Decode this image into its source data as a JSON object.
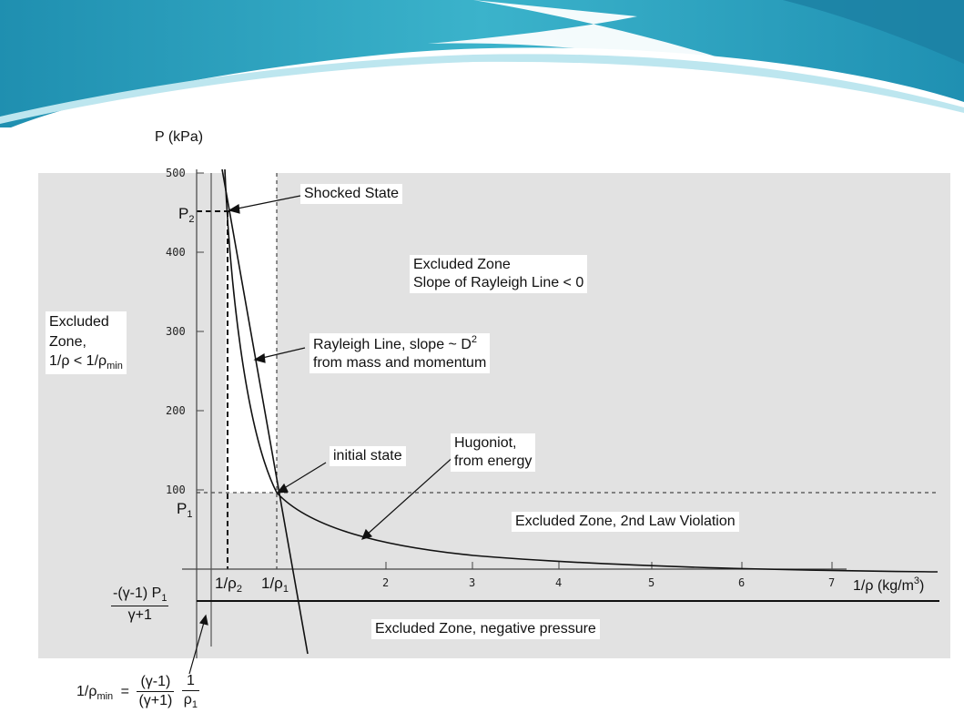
{
  "diagram": {
    "y_axis_label": "P (kPa)",
    "x_axis_label": "1/ρ  (kg/m",
    "x_axis_label_sup": "3",
    "x_axis_label_close": ")",
    "y_ticks": [
      "500",
      "400",
      "300",
      "200",
      "100"
    ],
    "x_ticks": [
      "2",
      "3",
      "4",
      "5",
      "6",
      "7"
    ],
    "p2_label": "P",
    "p2_sub": "2",
    "p1_label": "P",
    "p1_sub": "1",
    "x_rho2_label": "1/ρ",
    "x_rho2_sub": "2",
    "x_rho1_label": "1/ρ",
    "x_rho1_sub": "1",
    "neg_intercept": {
      "numerator": "-(γ-1) P",
      "numerator_sub": "1",
      "denominator": "γ+1"
    },
    "rho_min_formula": {
      "lhs": "1/ρ",
      "lhs_sub": "min",
      "equals": "=",
      "frac1_num": "(γ-1)",
      "frac1_den": "(γ+1)",
      "frac2_num": "1",
      "frac2_den": "ρ",
      "frac2_den_sub": "1"
    },
    "annotations": {
      "shocked_state": "Shocked State",
      "excluded_slope_line1": "Excluded Zone",
      "excluded_slope_line2": "Slope of Rayleigh Line < 0",
      "excluded_left_line1": "Excluded",
      "excluded_left_line2": "Zone,",
      "excluded_left_line3": "1/ρ  < 1/ρ",
      "excluded_left_line3_sub": "min",
      "rayleigh_line1": "Rayleigh Line, slope ~ D",
      "rayleigh_line1_sup": "2",
      "rayleigh_line2": "from mass and momentum",
      "initial_state": "initial state",
      "hugoniot_line1": "Hugoniot,",
      "hugoniot_line2": "from energy",
      "second_law": "Excluded Zone, 2nd Law Violation",
      "negative_pressure": "Excluded Zone, negative pressure"
    },
    "colors": {
      "excluded_zone": "#e2e2e2",
      "banner_teal": "#2aa6bd",
      "banner_light": "#bde6ef"
    }
  }
}
